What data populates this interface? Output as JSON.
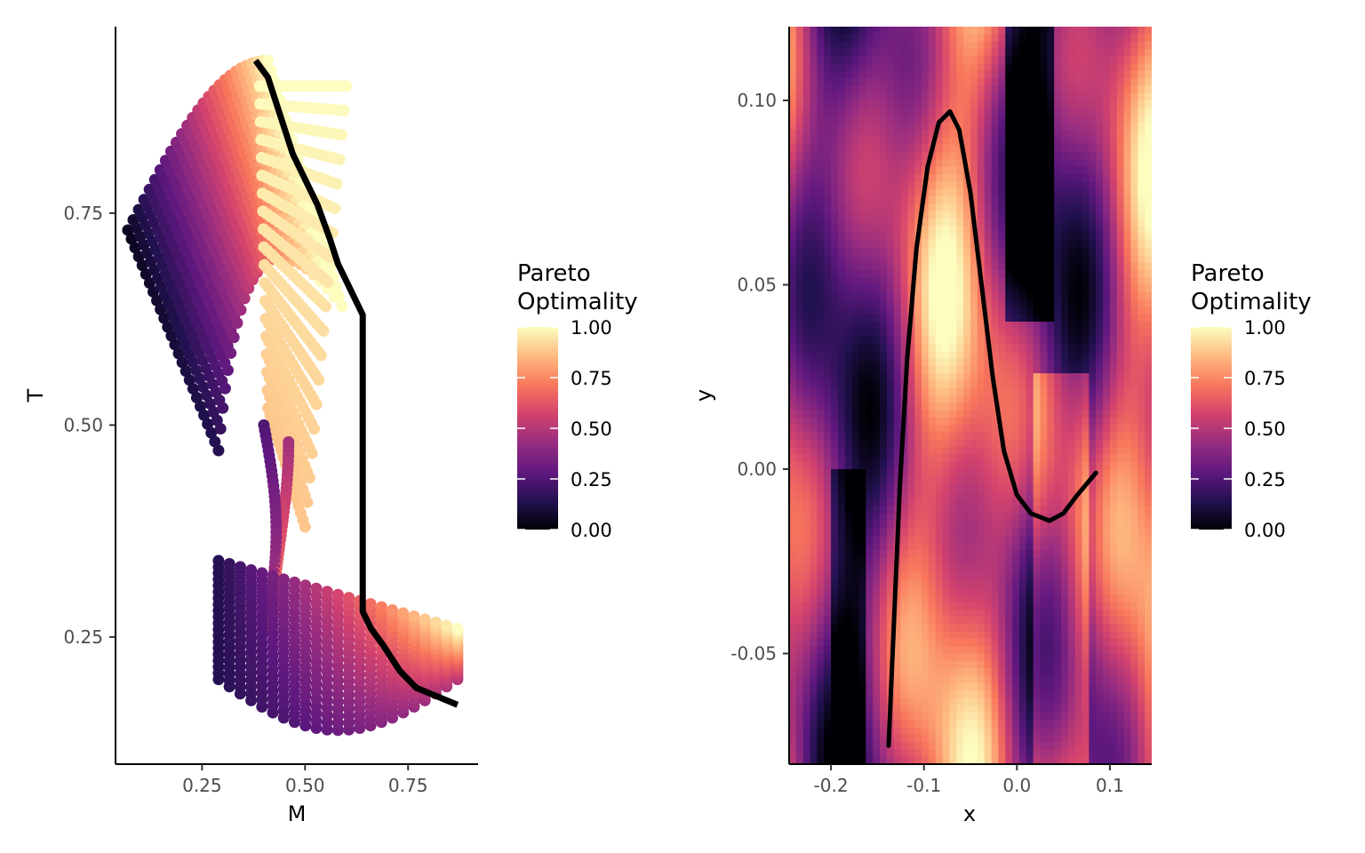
{
  "chart_data": [
    {
      "type": "scatter",
      "xlabel": "M",
      "ylabel": "T",
      "xlim": [
        0.04,
        0.92
      ],
      "ylim": [
        0.1,
        0.97
      ],
      "xticks": [
        "0.25",
        "0.50",
        "0.75"
      ],
      "xtick_values": [
        0.25,
        0.5,
        0.75
      ],
      "yticks": [
        "0.25",
        "0.50",
        "0.75"
      ],
      "ytick_values": [
        0.25,
        0.5,
        0.75
      ],
      "color_variable": "Pareto Optimality",
      "grid": false,
      "pareto_front": {
        "color": "#000000",
        "points": [
          [
            0.38,
            0.93
          ],
          [
            0.41,
            0.91
          ],
          [
            0.43,
            0.88
          ],
          [
            0.45,
            0.85
          ],
          [
            0.47,
            0.82
          ],
          [
            0.5,
            0.79
          ],
          [
            0.53,
            0.76
          ],
          [
            0.56,
            0.72
          ],
          [
            0.58,
            0.69
          ],
          [
            0.6,
            0.67
          ],
          [
            0.62,
            0.65
          ],
          [
            0.64,
            0.63
          ],
          [
            0.64,
            0.55
          ],
          [
            0.64,
            0.45
          ],
          [
            0.64,
            0.35
          ],
          [
            0.64,
            0.28
          ],
          [
            0.66,
            0.26
          ],
          [
            0.69,
            0.24
          ],
          [
            0.73,
            0.21
          ],
          [
            0.77,
            0.19
          ],
          [
            0.82,
            0.18
          ],
          [
            0.87,
            0.17
          ]
        ]
      }
    },
    {
      "type": "heatmap",
      "xlabel": "x",
      "ylabel": "y",
      "xlim": [
        -0.245,
        0.145
      ],
      "ylim": [
        -0.08,
        0.12
      ],
      "xticks": [
        "-0.2",
        "-0.1",
        "0.0",
        "0.1"
      ],
      "xtick_values": [
        -0.2,
        -0.1,
        0.0,
        0.1
      ],
      "yticks": [
        "-0.05",
        "0.00",
        "0.05",
        "0.10"
      ],
      "ytick_values": [
        -0.05,
        0.0,
        0.05,
        0.1
      ],
      "color_variable": "Pareto Optimality",
      "grid": false,
      "curve": {
        "color": "#000000",
        "points": [
          [
            -0.138,
            -0.075
          ],
          [
            -0.132,
            -0.04
          ],
          [
            -0.126,
            -0.005
          ],
          [
            -0.118,
            0.03
          ],
          [
            -0.108,
            0.06
          ],
          [
            -0.096,
            0.082
          ],
          [
            -0.084,
            0.094
          ],
          [
            -0.072,
            0.097
          ],
          [
            -0.062,
            0.092
          ],
          [
            -0.05,
            0.075
          ],
          [
            -0.038,
            0.05
          ],
          [
            -0.026,
            0.025
          ],
          [
            -0.014,
            0.005
          ],
          [
            0.0,
            -0.007
          ],
          [
            0.015,
            -0.012
          ],
          [
            0.035,
            -0.014
          ],
          [
            0.05,
            -0.012
          ],
          [
            0.065,
            -0.007
          ],
          [
            0.085,
            -0.001
          ]
        ]
      }
    }
  ],
  "legend": {
    "title_line1": "Pareto",
    "title_line2": "Optimality",
    "labels": [
      "1.00",
      "0.75",
      "0.50",
      "0.25",
      "0.00"
    ],
    "values": [
      1.0,
      0.75,
      0.5,
      0.25,
      0.0
    ],
    "colormap": [
      "#000004",
      "#221150",
      "#5f187f",
      "#982d80",
      "#d3436e",
      "#f8765c",
      "#febb81",
      "#fcfdbf"
    ]
  }
}
